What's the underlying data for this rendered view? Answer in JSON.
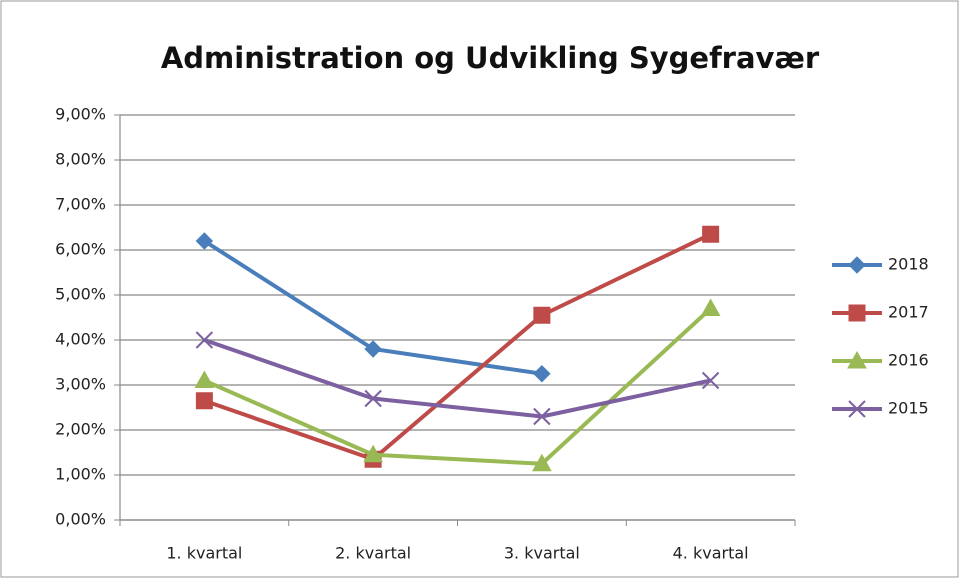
{
  "chart_data": {
    "type": "line",
    "title": "Administration  og Udvikling Sygefravær",
    "categories": [
      "1. kvartal",
      "2. kvartal",
      "3. kvartal",
      "4. kvartal"
    ],
    "series": [
      {
        "name": "2018",
        "color": "#4a7ebb",
        "marker": "diamond",
        "values": [
          6.2,
          3.8,
          3.25,
          null
        ]
      },
      {
        "name": "2017",
        "color": "#be4b48",
        "marker": "square",
        "values": [
          2.65,
          1.35,
          4.55,
          6.35
        ]
      },
      {
        "name": "2016",
        "color": "#98b954",
        "marker": "triangle",
        "values": [
          3.1,
          1.45,
          1.25,
          4.7
        ]
      },
      {
        "name": "2015",
        "color": "#7d60a0",
        "marker": "x",
        "values": [
          4.0,
          2.7,
          2.3,
          3.1
        ]
      }
    ],
    "ylim": [
      0,
      9
    ],
    "yticks": [
      {
        "value": 0,
        "label": "0,00%"
      },
      {
        "value": 1,
        "label": "1,00%"
      },
      {
        "value": 2,
        "label": "2,00%"
      },
      {
        "value": 3,
        "label": "3,00%"
      },
      {
        "value": 4,
        "label": "4,00%"
      },
      {
        "value": 5,
        "label": "5,00%"
      },
      {
        "value": 6,
        "label": "6,00%"
      },
      {
        "value": 7,
        "label": "7,00%"
      },
      {
        "value": 8,
        "label": "8,00%"
      },
      {
        "value": 9,
        "label": "9,00%"
      }
    ],
    "grid": true,
    "legend": "right"
  }
}
